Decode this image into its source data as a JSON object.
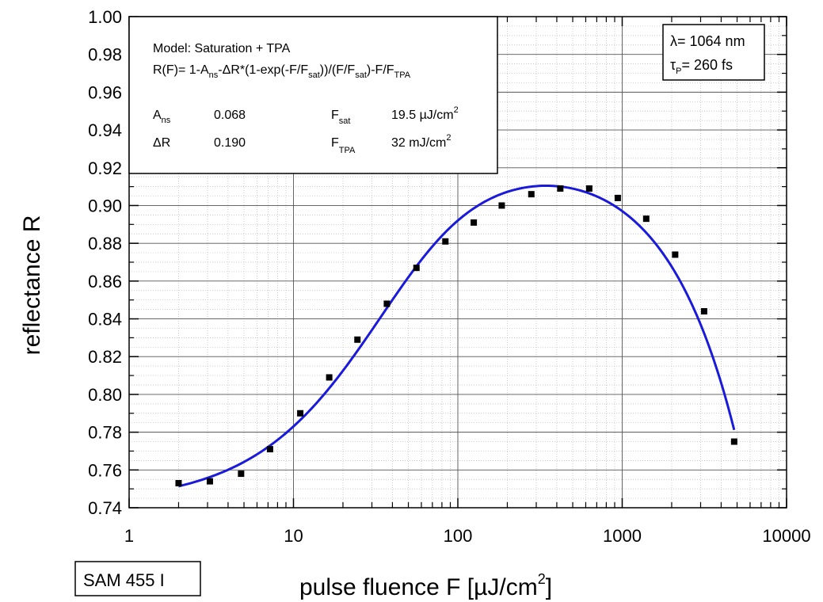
{
  "chart_data": {
    "type": "scatter",
    "xlabel_main": "pulse fluence F [µJ/cm",
    "xlabel_sup": "2",
    "xlabel_end": "]",
    "ylabel": "reflectance R",
    "x_scale": "log",
    "xlim": [
      1,
      10000
    ],
    "ylim": [
      0.74,
      1.0
    ],
    "x_ticks": [
      1,
      10,
      100,
      1000,
      10000
    ],
    "x_tick_labels": [
      "1",
      "10",
      "100",
      "1000",
      "10000"
    ],
    "y_ticks": [
      0.74,
      0.76,
      0.78,
      0.8,
      0.82,
      0.84,
      0.86,
      0.88,
      0.9,
      0.92,
      0.94,
      0.96,
      0.98,
      1.0
    ],
    "y_tick_labels": [
      "0.74",
      "0.76",
      "0.78",
      "0.80",
      "0.82",
      "0.84",
      "0.86",
      "0.88",
      "0.90",
      "0.92",
      "0.94",
      "0.96",
      "0.98",
      "1.00"
    ],
    "grid": true,
    "points_color": "#000000",
    "fit_color": "#1a1adb",
    "series": [
      {
        "x": [
          2.0,
          3.1,
          4.8,
          7.2,
          11,
          16.5,
          24.5,
          37,
          56,
          84,
          125,
          185,
          280,
          420,
          630,
          940,
          1400,
          2100,
          3150,
          4800
        ],
        "y": [
          0.753,
          0.754,
          0.758,
          0.771,
          0.79,
          0.809,
          0.829,
          0.848,
          0.867,
          0.881,
          0.891,
          0.9,
          0.906,
          0.909,
          0.909,
          0.904,
          0.893,
          0.874,
          0.844,
          0.775
        ]
      }
    ],
    "fit": {
      "A_ns": 0.068,
      "dR": 0.19,
      "F_sat": 19.5,
      "F_TPA": 32000,
      "x_range": [
        2.0,
        4800
      ]
    },
    "model_box": {
      "line1": "Model: Saturation + TPA",
      "formula": [
        {
          "t": "R(F)= 1-A"
        },
        {
          "t": "ns",
          "sub": true
        },
        {
          "t": "-ΔR*(1-exp(-F/F"
        },
        {
          "t": "sat",
          "sub": true
        },
        {
          "t": "))/(F/F"
        },
        {
          "t": "sat",
          "sub": true
        },
        {
          "t": ")-F/F"
        },
        {
          "t": "TPA",
          "sub": true
        }
      ],
      "p1_name": "A",
      "p1_sub": "ns",
      "p1_value": "0.068",
      "p2_name": "ΔR",
      "p2_value": "0.190",
      "p3_name": "F",
      "p3_sub": "sat",
      "p3_value": "19.5  µJ/cm",
      "p3_sup": "2",
      "p4_name": "F",
      "p4_sub": "TPA",
      "p4_value": "32  mJ/cm",
      "p4_sup": "2"
    },
    "param_box": {
      "line1": "λ= 1064 nm",
      "line2_sym": "τ",
      "line2_sub": "P",
      "line2_rest": "= 260 fs"
    },
    "sample_label": "SAM 455 I"
  }
}
